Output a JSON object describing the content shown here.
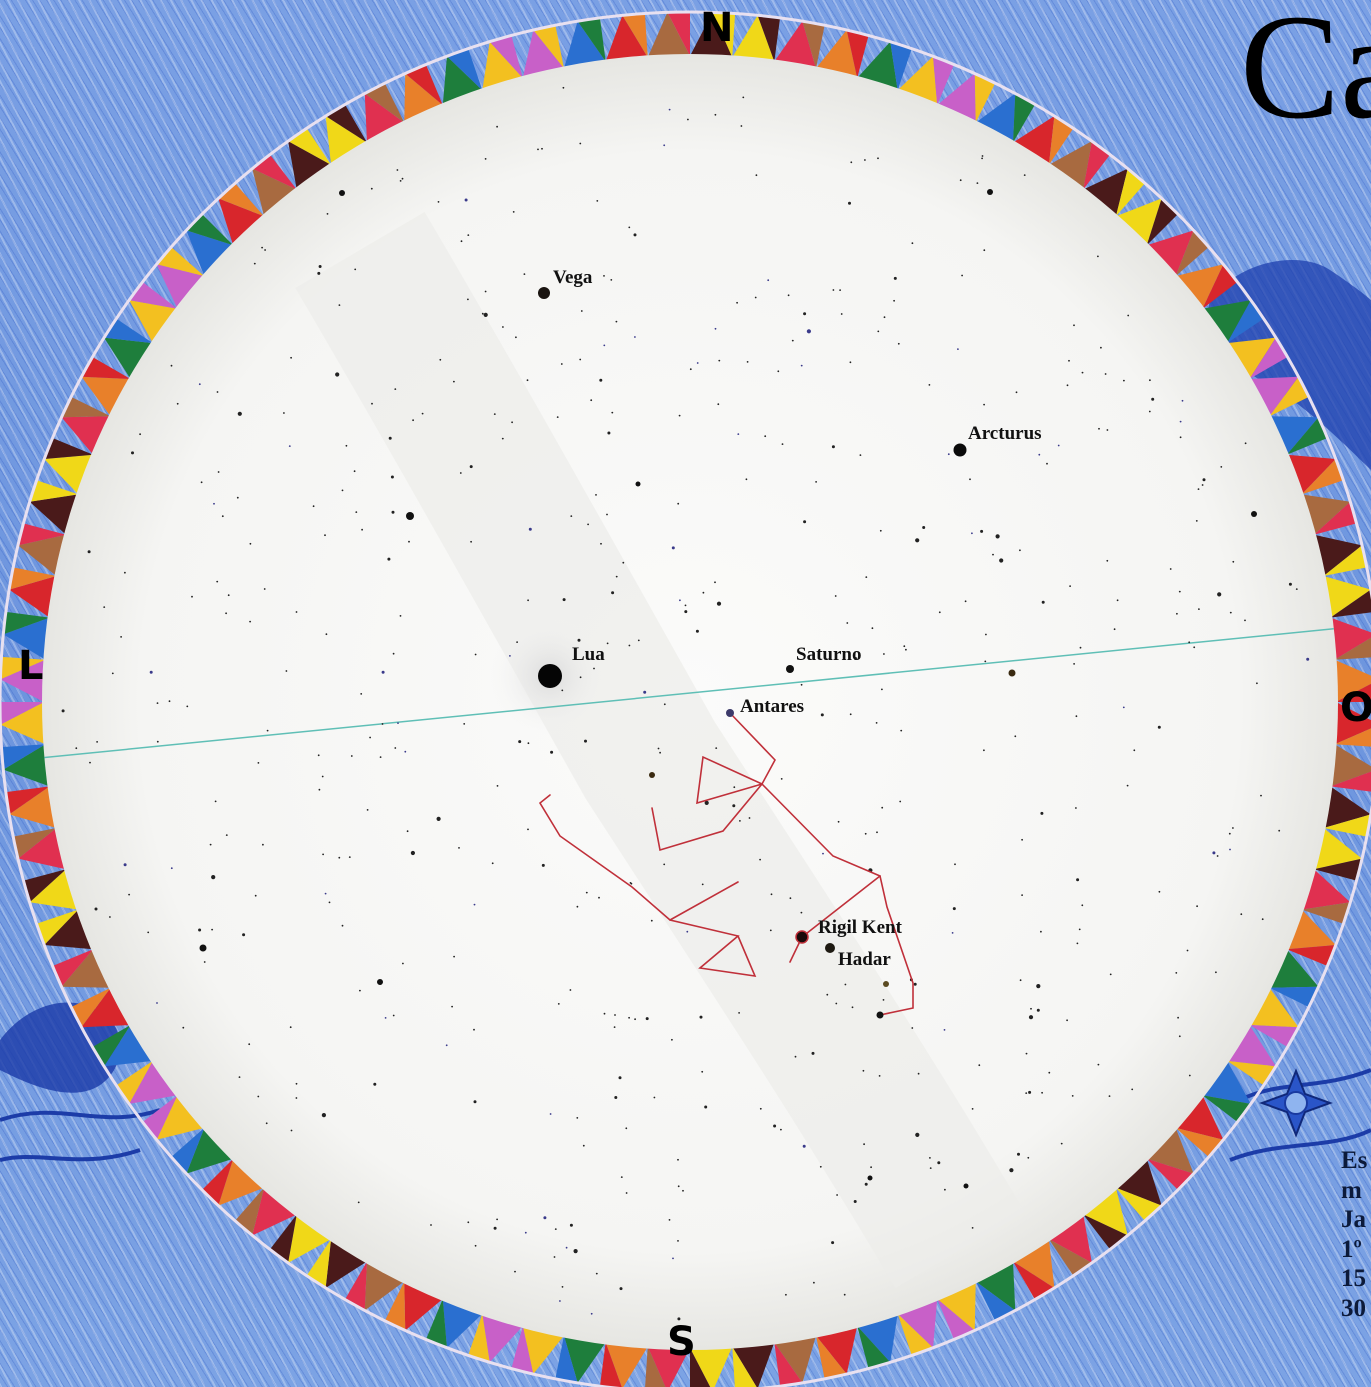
{
  "title": "Ca",
  "compass": {
    "north": "N",
    "south": "S",
    "east": "L",
    "west": "O"
  },
  "labels": {
    "vega": "Vega",
    "arcturus": "Arcturus",
    "lua": "Lua",
    "saturno": "Saturno",
    "antares": "Antares",
    "rigil_kent": "Rigil Kent",
    "hadar": "Hadar"
  },
  "info_lines": [
    "Es",
    "m",
    "Ja",
    "1º",
    "15",
    "30"
  ],
  "colors": {
    "background_blue": "#6f97df",
    "sky_disk": "#f7f7f5",
    "horizon_line": "#5fbfb6",
    "constellation": "#c0303a",
    "star": "#111111"
  }
}
